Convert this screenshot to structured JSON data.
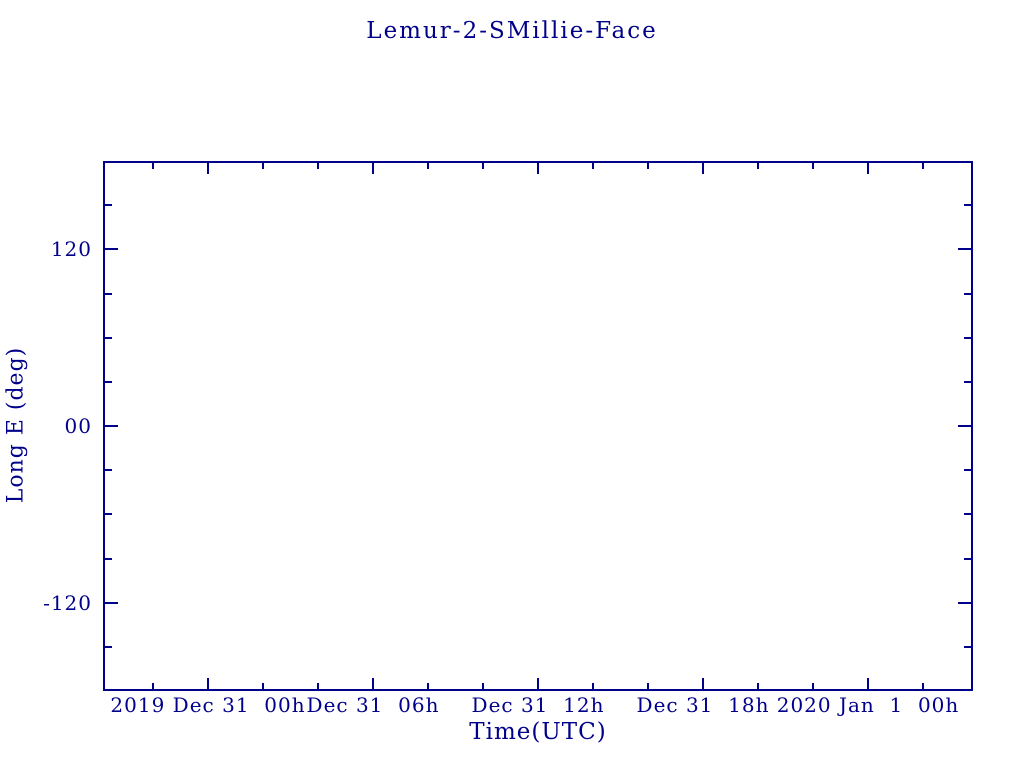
{
  "page": {
    "background_color": "#ffffff",
    "accent_color": "#00008b"
  },
  "chart_data": {
    "type": "line",
    "title": "Lemur-2-SMillie-Face",
    "xlabel": "Time(UTC)",
    "ylabel": "Long E (deg)",
    "grid": false,
    "legend": "none",
    "x_axis": {
      "unit": "hours relative to 2019 Dec 31 00h UTC",
      "range": [
        -3.82,
        27.82
      ],
      "minor_tick_step": 2,
      "major_ticks": [
        {
          "value": 0,
          "label": "2019 Dec 31  00h"
        },
        {
          "value": 6,
          "label": "Dec 31  06h"
        },
        {
          "value": 12,
          "label": "Dec 31  12h"
        },
        {
          "value": 18,
          "label": "Dec 31  18h"
        },
        {
          "value": 24,
          "label": "2020 Jan  1  00h"
        }
      ]
    },
    "y_axis": {
      "range": [
        -180,
        180
      ],
      "minor_tick_step": 30,
      "major_ticks": [
        {
          "value": 120,
          "label": "120"
        },
        {
          "value": 0,
          "label": "00"
        },
        {
          "value": -120,
          "label": "-120"
        }
      ]
    },
    "series": []
  }
}
